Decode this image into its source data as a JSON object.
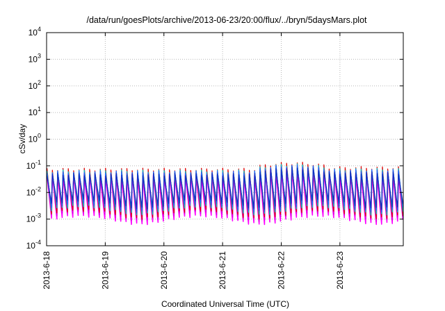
{
  "chart_data": {
    "type": "line",
    "title": "/data/run/goesPlots/archive/2013-06-23/20:00/flux/../bryn/5daysMars.plot",
    "xlabel": "Coordinated Universal Time (UTC)",
    "ylabel": "cSv/day",
    "y_scale": "log",
    "ylim_exp": [
      -4,
      4
    ],
    "y_ticks": [
      {
        "base": "10",
        "exp": "-4"
      },
      {
        "base": "10",
        "exp": "-3"
      },
      {
        "base": "10",
        "exp": "-2"
      },
      {
        "base": "10",
        "exp": "-1"
      },
      {
        "base": "10",
        "exp": "0"
      },
      {
        "base": "10",
        "exp": "1"
      },
      {
        "base": "10",
        "exp": "2"
      },
      {
        "base": "10",
        "exp": "3"
      },
      {
        "base": "10",
        "exp": "4"
      }
    ],
    "x_ticks": [
      "2013-6-18",
      "2013-6-19",
      "2013-6-20",
      "2013-6-21",
      "2013-6-22",
      "2013-6-23"
    ],
    "x_domain_days": [
      0,
      6.08
    ],
    "grid": true,
    "legend": "none",
    "oscillation": {
      "cycles": 67,
      "peak_range": [
        0.04,
        0.12
      ],
      "trough_range": [
        0.0009,
        0.003
      ]
    },
    "series_colors": [
      "#ff00ff",
      "#e000e0",
      "#dd0000",
      "#00c8c8",
      "#2060ff",
      "#1030c0"
    ]
  }
}
